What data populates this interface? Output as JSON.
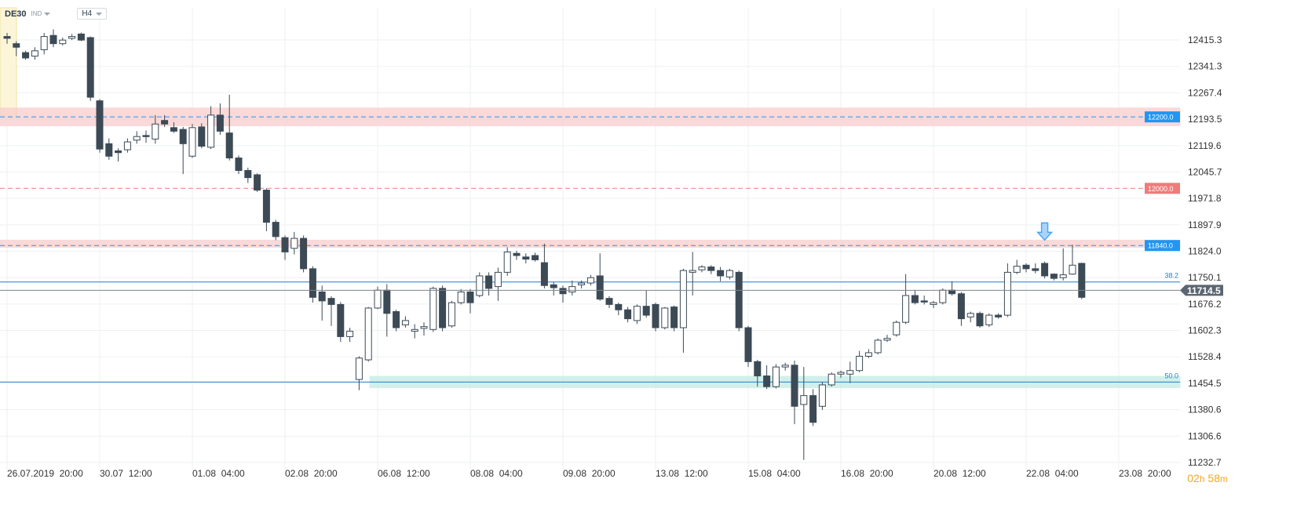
{
  "header": {
    "symbol": "DE30",
    "instrument_type": "IND",
    "timeframe": "H4"
  },
  "timer": {
    "hours": "02",
    "hours_unit": "h",
    "minutes": "58",
    "minutes_unit": "m"
  },
  "colors": {
    "bull_body": "#ffffff",
    "bear_body": "#3c4a56",
    "wick": "#3c4a56",
    "price_tag": "#5b6670",
    "alert_blue": "#2196f3",
    "alert_red": "#ef7b7b",
    "fib_line": "#1e7fd6",
    "arrow": "#4aa3f0"
  },
  "chart_data": {
    "type": "candlestick",
    "title": "",
    "ylim": [
      11180,
      12450
    ],
    "y_ticks": [
      12415.3,
      12341.3,
      12267.4,
      12193.5,
      12119.6,
      12045.7,
      11971.8,
      11897.9,
      11824.0,
      11750.1,
      11676.2,
      11602.3,
      11528.4,
      11454.5,
      11380.6,
      11306.6,
      11232.7
    ],
    "y_tick_labels": [
      "12415.3",
      "12341.3",
      "12267.4",
      "12193.5",
      "12119.6",
      "12045.7",
      "11971.8",
      "11897.9",
      "11824.0",
      "11750.1",
      "11676.2",
      "11602.3",
      "11528.4",
      "11454.5",
      "11380.6",
      "11306.6",
      "11232.7"
    ],
    "x_labels": [
      "26.07.2019  20:00",
      "30.07  12:00",
      "01.08  04:00",
      "02.08  20:00",
      "06.08  12:00",
      "08.08  04:00",
      "09.08  20:00",
      "13.08  12:00",
      "15.08  04:00",
      "16.08  20:00",
      "20.08  12:00",
      "22.08  04:00",
      "23.08  20:00"
    ],
    "x_label_index": [
      0,
      10,
      20,
      30,
      40,
      50,
      60,
      70,
      80,
      90,
      100,
      110,
      120
    ],
    "candles": [
      [
        12425,
        12420,
        12435,
        12405
      ],
      [
        12405,
        12395,
        12412,
        12370
      ],
      [
        12380,
        12365,
        12385,
        12360
      ],
      [
        12370,
        12385,
        12395,
        12360
      ],
      [
        12388,
        12425,
        12435,
        12375
      ],
      [
        12428,
        12405,
        12445,
        12395
      ],
      [
        12405,
        12415,
        12422,
        12400
      ],
      [
        12420,
        12425,
        12432,
        12415
      ],
      [
        12432,
        12415,
        12436,
        12412
      ],
      [
        12422,
        12255,
        12425,
        12245
      ],
      [
        12245,
        12110,
        12250,
        12100
      ],
      [
        12125,
        12090,
        12140,
        12080
      ],
      [
        12105,
        12100,
        12112,
        12075
      ],
      [
        12108,
        12130,
        12140,
        12100
      ],
      [
        12135,
        12145,
        12160,
        12125
      ],
      [
        12148,
        12145,
        12162,
        12128
      ],
      [
        12138,
        12180,
        12205,
        12125
      ],
      [
        12190,
        12180,
        12205,
        12172
      ],
      [
        12170,
        12160,
        12185,
        12155
      ],
      [
        12165,
        12125,
        12172,
        12040
      ],
      [
        12090,
        12170,
        12180,
        12085
      ],
      [
        12172,
        12118,
        12182,
        12112
      ],
      [
        12115,
        12205,
        12230,
        12110
      ],
      [
        12205,
        12160,
        12238,
        12150
      ],
      [
        12155,
        12085,
        12262,
        12078
      ],
      [
        12085,
        12050,
        12092,
        12040
      ],
      [
        12050,
        12030,
        12058,
        12015
      ],
      [
        12038,
        11995,
        12042,
        11990
      ],
      [
        11995,
        11905,
        12000,
        11880
      ],
      [
        11905,
        11865,
        11912,
        11855
      ],
      [
        11862,
        11822,
        11868,
        11800
      ],
      [
        11832,
        11860,
        11878,
        11815
      ],
      [
        11860,
        11775,
        11868,
        11765
      ],
      [
        11775,
        11695,
        11782,
        11680
      ],
      [
        11710,
        11685,
        11728,
        11630
      ],
      [
        11692,
        11675,
        11698,
        11615
      ],
      [
        11675,
        11585,
        11682,
        11570
      ],
      [
        11585,
        11600,
        11610,
        11570
      ],
      [
        11465,
        11525,
        11530,
        11435
      ],
      [
        11520,
        11665,
        11668,
        11515
      ],
      [
        11665,
        11715,
        11725,
        11662
      ],
      [
        11715,
        11650,
        11732,
        11585
      ],
      [
        11655,
        11610,
        11660,
        11600
      ],
      [
        11618,
        11630,
        11642,
        11610
      ],
      [
        11600,
        11605,
        11620,
        11580
      ],
      [
        11608,
        11613,
        11625,
        11588
      ],
      [
        11605,
        11720,
        11725,
        11598
      ],
      [
        11720,
        11610,
        11728,
        11600
      ],
      [
        11615,
        11680,
        11685,
        11610
      ],
      [
        11680,
        11710,
        11718,
        11675
      ],
      [
        11710,
        11680,
        11718,
        11650
      ],
      [
        11700,
        11755,
        11765,
        11695
      ],
      [
        11755,
        11720,
        11765,
        11700
      ],
      [
        11725,
        11765,
        11778,
        11685
      ],
      [
        11765,
        11822,
        11835,
        11755
      ],
      [
        11818,
        11812,
        11825,
        11800
      ],
      [
        11808,
        11802,
        11818,
        11790
      ],
      [
        11812,
        11800,
        11820,
        11795
      ],
      [
        11792,
        11728,
        11845,
        11720
      ],
      [
        11730,
        11722,
        11738,
        11700
      ],
      [
        11720,
        11705,
        11728,
        11680
      ],
      [
        11710,
        11725,
        11742,
        11700
      ],
      [
        11730,
        11735,
        11742,
        11720
      ],
      [
        11735,
        11750,
        11758,
        11728
      ],
      [
        11755,
        11690,
        11818,
        11685
      ],
      [
        11692,
        11675,
        11698,
        11665
      ],
      [
        11675,
        11660,
        11680,
        11645
      ],
      [
        11660,
        11635,
        11668,
        11625
      ],
      [
        11630,
        11670,
        11675,
        11620
      ],
      [
        11670,
        11645,
        11715,
        11638
      ],
      [
        11675,
        11610,
        11680,
        11600
      ],
      [
        11610,
        11665,
        11668,
        11605
      ],
      [
        11668,
        11610,
        11672,
        11600
      ],
      [
        11610,
        11770,
        11775,
        11540
      ],
      [
        11765,
        11770,
        11822,
        11700
      ],
      [
        11772,
        11780,
        11785,
        11765
      ],
      [
        11780,
        11770,
        11785,
        11760
      ],
      [
        11770,
        11755,
        11780,
        11740
      ],
      [
        11752,
        11770,
        11775,
        11745
      ],
      [
        11765,
        11610,
        11770,
        11600
      ],
      [
        11610,
        11515,
        11615,
        11500
      ],
      [
        11515,
        11475,
        11520,
        11445
      ],
      [
        11475,
        11445,
        11505,
        11438
      ],
      [
        11445,
        11500,
        11508,
        11440
      ],
      [
        11500,
        11505,
        11512,
        11490
      ],
      [
        11505,
        11390,
        11518,
        11340
      ],
      [
        11395,
        11420,
        11500,
        11240
      ],
      [
        11420,
        11345,
        11438,
        11335
      ],
      [
        11390,
        11450,
        11458,
        11380
      ],
      [
        11450,
        11480,
        11485,
        11445
      ],
      [
        11480,
        11485,
        11490,
        11470
      ],
      [
        11480,
        11490,
        11515,
        11455
      ],
      [
        11490,
        11530,
        11545,
        11485
      ],
      [
        11530,
        11540,
        11550,
        11525
      ],
      [
        11540,
        11575,
        11580,
        11535
      ],
      [
        11575,
        11580,
        11590,
        11570
      ],
      [
        11590,
        11625,
        11630,
        11585
      ],
      [
        11625,
        11700,
        11760,
        11620
      ],
      [
        11700,
        11680,
        11715,
        11675
      ],
      [
        11685,
        11683,
        11700,
        11675
      ],
      [
        11675,
        11680,
        11685,
        11665
      ],
      [
        11680,
        11715,
        11720,
        11675
      ],
      [
        11715,
        11705,
        11740,
        11700
      ],
      [
        11705,
        11635,
        11710,
        11615
      ],
      [
        11640,
        11650,
        11655,
        11625
      ],
      [
        11650,
        11615,
        11655,
        11610
      ],
      [
        11618,
        11645,
        11650,
        11612
      ],
      [
        11645,
        11640,
        11650,
        11635
      ],
      [
        11645,
        11765,
        11790,
        11640
      ],
      [
        11765,
        11782,
        11800,
        11760
      ],
      [
        11785,
        11775,
        11790,
        11765
      ],
      [
        11775,
        11770,
        11790,
        11762
      ],
      [
        11790,
        11755,
        11795,
        11748
      ],
      [
        11760,
        11748,
        11762,
        11742
      ],
      [
        11750,
        11758,
        11832,
        11742
      ],
      [
        11760,
        11785,
        11842,
        11758
      ],
      [
        11790,
        11695,
        11792,
        11690
      ]
    ],
    "horizontal_lines": [
      {
        "price": 12200.0,
        "label": "12200.0",
        "style": "dashed",
        "color": "#2196f3",
        "zone": [
          12175,
          12225
        ],
        "zone_color": "#f8d0d0"
      },
      {
        "price": 12000.0,
        "label": "12000.0",
        "style": "dashed",
        "color": "#ef7b7b"
      },
      {
        "price": 11840.0,
        "label": "11840.0",
        "style": "dashed",
        "color": "#2196f3",
        "zone": [
          11835,
          11855
        ],
        "zone_color": "#f8d0d0"
      },
      {
        "price": 11738.0,
        "label": "38.2",
        "style": "solid",
        "color": "#1e7fd6"
      },
      {
        "price": 11458.0,
        "label": "50.0",
        "style": "solid",
        "color": "#1e7fd6",
        "zone": [
          11442,
          11474
        ],
        "zone_color": "#c8ede4",
        "zone_start_index": 40
      }
    ],
    "current_price": {
      "price": 11714.5,
      "label": "11714.5"
    },
    "signal_arrow_index": 112
  }
}
